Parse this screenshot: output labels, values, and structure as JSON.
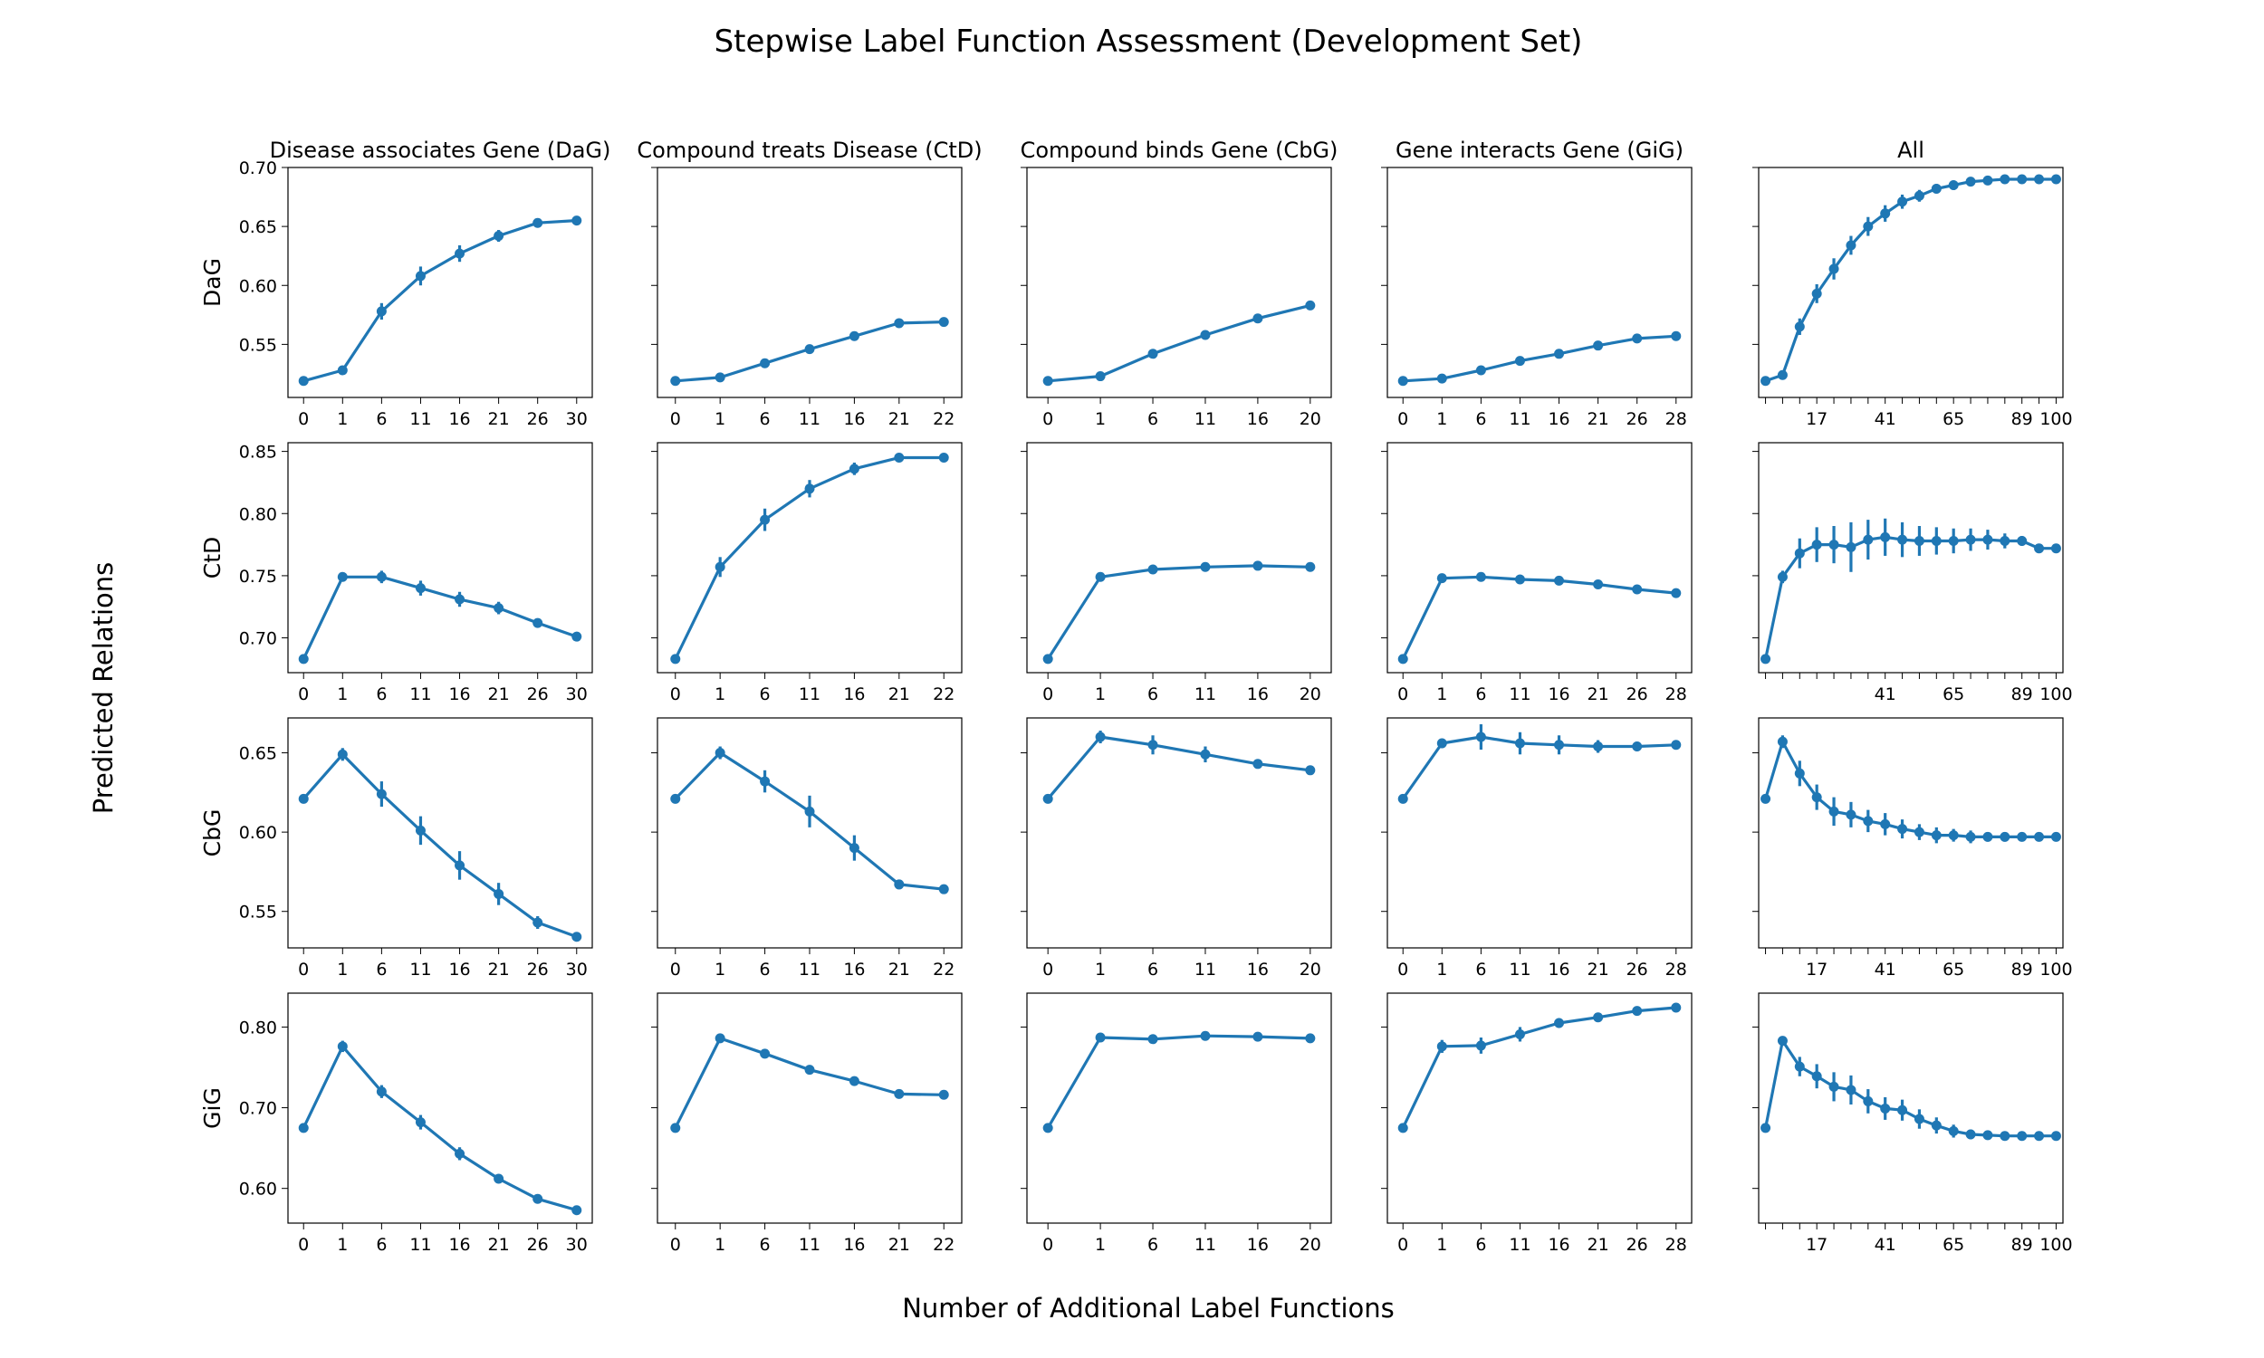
{
  "figure": {
    "title": "Stepwise Label Function Assessment (Development Set)",
    "xlabel": "Number of Additional Label Functions",
    "ylabel": "Predicted Relations",
    "line_color": "#1f77b4"
  },
  "chart_data": [
    {
      "type": "line",
      "row": "DaG",
      "col": "Disease associates Gene (DaG)",
      "categories": [
        "0",
        "1",
        "6",
        "11",
        "16",
        "21",
        "26",
        "30"
      ],
      "values": [
        0.519,
        0.528,
        0.578,
        0.608,
        0.627,
        0.642,
        0.653,
        0.655
      ],
      "yerr": [
        0.002,
        0.003,
        0.007,
        0.008,
        0.007,
        0.005,
        0.003,
        0.002
      ],
      "ylim": [
        0.505,
        0.7
      ],
      "yticks": [
        0.55,
        0.6,
        0.65,
        0.7
      ]
    },
    {
      "type": "line",
      "row": "DaG",
      "col": "Compound treats Disease (CtD)",
      "categories": [
        "0",
        "1",
        "6",
        "11",
        "16",
        "21",
        "22"
      ],
      "values": [
        0.519,
        0.522,
        0.534,
        0.546,
        0.557,
        0.568,
        0.569
      ],
      "yerr": [
        0.002,
        0.002,
        0.002,
        0.002,
        0.002,
        0.002,
        0.002
      ],
      "ylim": [
        0.505,
        0.7
      ],
      "yticks": [
        0.55,
        0.6,
        0.65,
        0.7
      ]
    },
    {
      "type": "line",
      "row": "DaG",
      "col": "Compound binds Gene (CbG)",
      "categories": [
        "0",
        "1",
        "6",
        "11",
        "16",
        "20"
      ],
      "values": [
        0.519,
        0.523,
        0.542,
        0.558,
        0.572,
        0.583
      ],
      "yerr": [
        0.002,
        0.002,
        0.002,
        0.002,
        0.002,
        0.002
      ],
      "ylim": [
        0.505,
        0.7
      ],
      "yticks": [
        0.55,
        0.6,
        0.65,
        0.7
      ]
    },
    {
      "type": "line",
      "row": "DaG",
      "col": "Gene interacts Gene (GiG)",
      "categories": [
        "0",
        "1",
        "6",
        "11",
        "16",
        "21",
        "26",
        "28"
      ],
      "values": [
        0.519,
        0.521,
        0.528,
        0.536,
        0.542,
        0.549,
        0.555,
        0.557
      ],
      "yerr": [
        0.002,
        0.002,
        0.002,
        0.002,
        0.002,
        0.002,
        0.002,
        0.002
      ],
      "ylim": [
        0.505,
        0.7
      ],
      "yticks": [
        0.55,
        0.6,
        0.65,
        0.7
      ]
    },
    {
      "type": "line",
      "row": "DaG",
      "col": "All",
      "categories": [
        "0",
        "5",
        "11",
        "17",
        "23",
        "29",
        "35",
        "41",
        "47",
        "53",
        "59",
        "65",
        "71",
        "77",
        "83",
        "89",
        "95",
        "100"
      ],
      "values": [
        0.519,
        0.524,
        0.565,
        0.593,
        0.614,
        0.634,
        0.65,
        0.661,
        0.671,
        0.676,
        0.682,
        0.685,
        0.688,
        0.689,
        0.69,
        0.69,
        0.69,
        0.69
      ],
      "yerr": [
        0.002,
        0.004,
        0.007,
        0.008,
        0.009,
        0.008,
        0.008,
        0.007,
        0.006,
        0.005,
        0.004,
        0.004,
        0.003,
        0.003,
        0.002,
        0.002,
        0.002,
        0.002
      ],
      "tick_labels": [
        "17",
        "41",
        "65",
        "89",
        "100"
      ],
      "ylim": [
        0.505,
        0.7
      ],
      "yticks": [
        0.55,
        0.6,
        0.65,
        0.7
      ]
    },
    {
      "type": "line",
      "row": "CtD",
      "col": "Disease associates Gene (DaG)",
      "categories": [
        "0",
        "1",
        "6",
        "11",
        "16",
        "21",
        "26",
        "30"
      ],
      "values": [
        0.683,
        0.749,
        0.749,
        0.74,
        0.731,
        0.724,
        0.712,
        0.701
      ],
      "yerr": [
        0.002,
        0.003,
        0.005,
        0.006,
        0.006,
        0.005,
        0.003,
        0.002
      ],
      "ylim": [
        0.672,
        0.857
      ],
      "yticks": [
        0.7,
        0.75,
        0.8,
        0.85
      ]
    },
    {
      "type": "line",
      "row": "CtD",
      "col": "Compound treats Disease (CtD)",
      "categories": [
        "0",
        "1",
        "6",
        "11",
        "16",
        "21",
        "22"
      ],
      "values": [
        0.683,
        0.757,
        0.795,
        0.82,
        0.836,
        0.845,
        0.845
      ],
      "yerr": [
        0.002,
        0.008,
        0.009,
        0.007,
        0.005,
        0.003,
        0.002
      ],
      "ylim": [
        0.672,
        0.857
      ],
      "yticks": [
        0.7,
        0.75,
        0.8,
        0.85
      ]
    },
    {
      "type": "line",
      "row": "CtD",
      "col": "Compound binds Gene (CbG)",
      "categories": [
        "0",
        "1",
        "6",
        "11",
        "16",
        "20"
      ],
      "values": [
        0.683,
        0.749,
        0.755,
        0.757,
        0.758,
        0.757
      ],
      "yerr": [
        0.002,
        0.002,
        0.003,
        0.002,
        0.002,
        0.002
      ],
      "ylim": [
        0.672,
        0.857
      ],
      "yticks": [
        0.7,
        0.75,
        0.8,
        0.85
      ]
    },
    {
      "type": "line",
      "row": "CtD",
      "col": "Gene interacts Gene (GiG)",
      "categories": [
        "0",
        "1",
        "6",
        "11",
        "16",
        "21",
        "26",
        "28"
      ],
      "values": [
        0.683,
        0.748,
        0.749,
        0.747,
        0.746,
        0.743,
        0.739,
        0.736
      ],
      "yerr": [
        0.002,
        0.002,
        0.003,
        0.003,
        0.003,
        0.002,
        0.002,
        0.002
      ],
      "ylim": [
        0.672,
        0.857
      ],
      "yticks": [
        0.7,
        0.75,
        0.8,
        0.85
      ]
    },
    {
      "type": "line",
      "row": "CtD",
      "col": "All",
      "categories": [
        "0",
        "5",
        "11",
        "17",
        "23",
        "29",
        "35",
        "41",
        "47",
        "53",
        "59",
        "65",
        "71",
        "77",
        "83",
        "89",
        "95",
        "100"
      ],
      "values": [
        0.683,
        0.749,
        0.768,
        0.775,
        0.775,
        0.773,
        0.779,
        0.781,
        0.779,
        0.778,
        0.778,
        0.778,
        0.779,
        0.779,
        0.778,
        0.778,
        0.772,
        0.772
      ],
      "yerr": [
        0.002,
        0.005,
        0.012,
        0.014,
        0.015,
        0.02,
        0.016,
        0.015,
        0.014,
        0.012,
        0.011,
        0.01,
        0.009,
        0.008,
        0.006,
        0.004,
        0.003,
        0.002
      ],
      "tick_labels": [
        "41",
        "65",
        "89",
        "100"
      ],
      "ylim": [
        0.672,
        0.857
      ],
      "yticks": [
        0.7,
        0.75,
        0.8,
        0.85
      ]
    },
    {
      "type": "line",
      "row": "CbG",
      "col": "Disease associates Gene (DaG)",
      "categories": [
        "0",
        "1",
        "6",
        "11",
        "16",
        "21",
        "26",
        "30"
      ],
      "values": [
        0.621,
        0.649,
        0.624,
        0.601,
        0.579,
        0.561,
        0.543,
        0.534
      ],
      "yerr": [
        0.002,
        0.004,
        0.008,
        0.009,
        0.009,
        0.007,
        0.004,
        0.002
      ],
      "ylim": [
        0.527,
        0.672
      ],
      "yticks": [
        0.55,
        0.6,
        0.65
      ]
    },
    {
      "type": "line",
      "row": "CbG",
      "col": "Compound treats Disease (CtD)",
      "categories": [
        "0",
        "1",
        "6",
        "11",
        "16",
        "21",
        "22"
      ],
      "values": [
        0.621,
        0.65,
        0.632,
        0.613,
        0.59,
        0.567,
        0.564
      ],
      "yerr": [
        0.002,
        0.004,
        0.007,
        0.01,
        0.008,
        0.003,
        0.002
      ],
      "ylim": [
        0.527,
        0.672
      ],
      "yticks": [
        0.55,
        0.6,
        0.65
      ]
    },
    {
      "type": "line",
      "row": "CbG",
      "col": "Compound binds Gene (CbG)",
      "categories": [
        "0",
        "1",
        "6",
        "11",
        "16",
        "20"
      ],
      "values": [
        0.621,
        0.66,
        0.655,
        0.649,
        0.643,
        0.639
      ],
      "yerr": [
        0.002,
        0.004,
        0.006,
        0.005,
        0.003,
        0.002
      ],
      "ylim": [
        0.527,
        0.672
      ],
      "yticks": [
        0.55,
        0.6,
        0.65
      ]
    },
    {
      "type": "line",
      "row": "CbG",
      "col": "Gene interacts Gene (GiG)",
      "categories": [
        "0",
        "1",
        "6",
        "11",
        "16",
        "21",
        "26",
        "28"
      ],
      "values": [
        0.621,
        0.656,
        0.66,
        0.656,
        0.655,
        0.654,
        0.654,
        0.655
      ],
      "yerr": [
        0.002,
        0.003,
        0.008,
        0.007,
        0.006,
        0.004,
        0.003,
        0.002
      ],
      "ylim": [
        0.527,
        0.672
      ],
      "yticks": [
        0.55,
        0.6,
        0.65
      ]
    },
    {
      "type": "line",
      "row": "CbG",
      "col": "All",
      "categories": [
        "0",
        "5",
        "11",
        "17",
        "23",
        "29",
        "35",
        "41",
        "47",
        "53",
        "59",
        "65",
        "71",
        "77",
        "83",
        "89",
        "95",
        "100"
      ],
      "values": [
        0.621,
        0.657,
        0.637,
        0.622,
        0.613,
        0.611,
        0.607,
        0.605,
        0.602,
        0.6,
        0.598,
        0.598,
        0.597,
        0.597,
        0.597,
        0.597,
        0.597,
        0.597
      ],
      "yerr": [
        0.002,
        0.004,
        0.008,
        0.008,
        0.009,
        0.008,
        0.007,
        0.007,
        0.006,
        0.005,
        0.005,
        0.004,
        0.004,
        0.003,
        0.003,
        0.002,
        0.002,
        0.002
      ],
      "tick_labels": [
        "17",
        "41",
        "65",
        "89",
        "100"
      ],
      "ylim": [
        0.527,
        0.672
      ],
      "yticks": [
        0.55,
        0.6,
        0.65
      ]
    },
    {
      "type": "line",
      "row": "GiG",
      "col": "Disease associates Gene (DaG)",
      "categories": [
        "0",
        "1",
        "6",
        "11",
        "16",
        "21",
        "26",
        "30"
      ],
      "values": [
        0.675,
        0.776,
        0.72,
        0.682,
        0.643,
        0.612,
        0.587,
        0.573
      ],
      "yerr": [
        0.002,
        0.007,
        0.008,
        0.009,
        0.008,
        0.005,
        0.003,
        0.002
      ],
      "ylim": [
        0.557,
        0.842
      ],
      "yticks": [
        0.6,
        0.7,
        0.8
      ]
    },
    {
      "type": "line",
      "row": "GiG",
      "col": "Compound treats Disease (CtD)",
      "categories": [
        "0",
        "1",
        "6",
        "11",
        "16",
        "21",
        "22"
      ],
      "values": [
        0.675,
        0.786,
        0.767,
        0.747,
        0.733,
        0.717,
        0.716
      ],
      "yerr": [
        0.002,
        0.003,
        0.003,
        0.003,
        0.003,
        0.002,
        0.002
      ],
      "ylim": [
        0.557,
        0.842
      ],
      "yticks": [
        0.6,
        0.7,
        0.8
      ]
    },
    {
      "type": "line",
      "row": "GiG",
      "col": "Compound binds Gene (CbG)",
      "categories": [
        "0",
        "1",
        "6",
        "11",
        "16",
        "20"
      ],
      "values": [
        0.675,
        0.787,
        0.785,
        0.789,
        0.788,
        0.786
      ],
      "yerr": [
        0.002,
        0.003,
        0.005,
        0.004,
        0.003,
        0.002
      ],
      "ylim": [
        0.557,
        0.842
      ],
      "yticks": [
        0.6,
        0.7,
        0.8
      ]
    },
    {
      "type": "line",
      "row": "GiG",
      "col": "Gene interacts Gene (GiG)",
      "categories": [
        "0",
        "1",
        "6",
        "11",
        "16",
        "21",
        "26",
        "28"
      ],
      "values": [
        0.675,
        0.776,
        0.777,
        0.791,
        0.805,
        0.812,
        0.82,
        0.824
      ],
      "yerr": [
        0.002,
        0.008,
        0.01,
        0.009,
        0.006,
        0.004,
        0.003,
        0.002
      ],
      "ylim": [
        0.557,
        0.842
      ],
      "yticks": [
        0.6,
        0.7,
        0.8
      ]
    },
    {
      "type": "line",
      "row": "GiG",
      "col": "All",
      "categories": [
        "0",
        "5",
        "11",
        "17",
        "23",
        "29",
        "35",
        "41",
        "47",
        "53",
        "59",
        "65",
        "71",
        "77",
        "83",
        "89",
        "95",
        "100"
      ],
      "values": [
        0.675,
        0.783,
        0.751,
        0.739,
        0.726,
        0.722,
        0.708,
        0.699,
        0.697,
        0.686,
        0.678,
        0.671,
        0.667,
        0.666,
        0.665,
        0.665,
        0.665,
        0.665
      ],
      "yerr": [
        0.002,
        0.004,
        0.012,
        0.015,
        0.018,
        0.018,
        0.015,
        0.014,
        0.013,
        0.012,
        0.01,
        0.008,
        0.006,
        0.004,
        0.003,
        0.003,
        0.002,
        0.002
      ],
      "tick_labels": [
        "17",
        "41",
        "65",
        "89",
        "100"
      ],
      "ylim": [
        0.557,
        0.842
      ],
      "yticks": [
        0.6,
        0.7,
        0.8
      ]
    }
  ]
}
